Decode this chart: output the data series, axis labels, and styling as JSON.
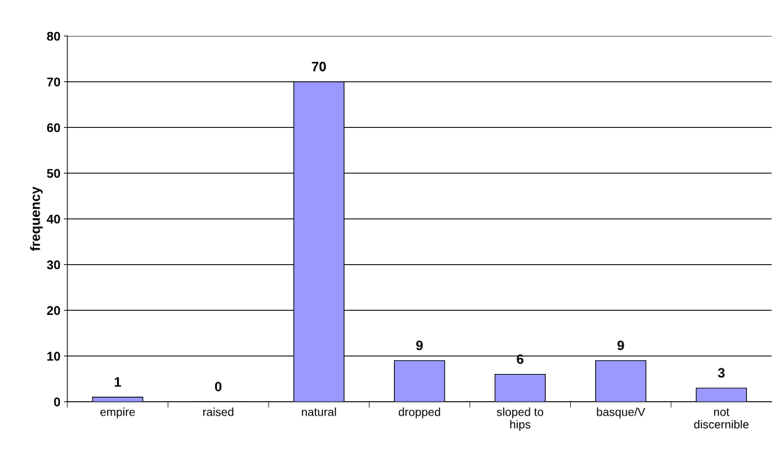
{
  "chart_data": {
    "type": "bar",
    "ylabel": "frequency",
    "categories": [
      "empire",
      "raised",
      "natural",
      "dropped",
      "sloped to\nhips",
      "basque/V",
      "not\ndiscernible"
    ],
    "values": [
      1,
      0,
      70,
      9,
      6,
      9,
      3
    ],
    "color": "#9999ff",
    "ylim": [
      0,
      80
    ],
    "yticks": [
      0,
      10,
      20,
      30,
      40,
      50,
      60,
      70,
      80
    ],
    "grid": "y",
    "data_labels": true
  }
}
